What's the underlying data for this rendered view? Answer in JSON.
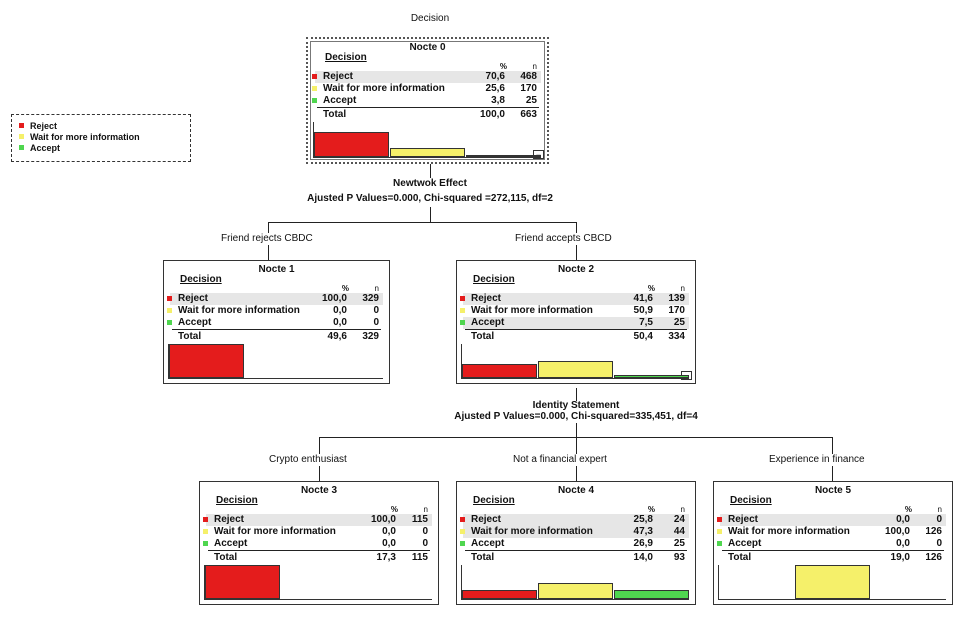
{
  "title": "Decision",
  "colors": {
    "reject": "#e41c1c",
    "wait": "#f5f06a",
    "accept": "#4fd64f"
  },
  "legend": {
    "items": [
      {
        "label": "Reject",
        "color": "#e41c1c"
      },
      {
        "label": "Wait for more information",
        "color": "#f5f06a"
      },
      {
        "label": "Accept",
        "color": "#4fd64f"
      }
    ]
  },
  "header": {
    "pct": "%",
    "n": "n"
  },
  "split1": {
    "title": "Newtwok Effect",
    "stats": "Ajusted P Values=0.000,  Chi-squared =272,115, df=2"
  },
  "split2": {
    "title": "Identity Statement",
    "stats": "Ajusted P Values=0.000,  Chi-squared=335,451,  df=4"
  },
  "branches": {
    "friend_rejects": "Friend rejects CBDC",
    "friend_accepts": "Friend accepts CBCD",
    "crypto": "Crypto enthusiast",
    "not_expert": "Not a financial expert",
    "experience": "Experience in finance"
  },
  "nodes": [
    {
      "id": "Nocte 0",
      "var": "Decision",
      "rows": [
        [
          "Reject",
          "70,6",
          "468"
        ],
        [
          "Wait for more information",
          "25,6",
          "170"
        ],
        [
          "Accept",
          "3,8",
          "25"
        ]
      ],
      "total": [
        "Total",
        "100,0",
        "663"
      ],
      "fractions": [
        0.706,
        0.256,
        0.038
      ]
    },
    {
      "id": "Nocte 1",
      "var": "Decision",
      "rows": [
        [
          "Reject",
          "100,0",
          "329"
        ],
        [
          "Wait for more information",
          "0,0",
          "0"
        ],
        [
          "Accept",
          "0,0",
          "0"
        ]
      ],
      "total": [
        "Total",
        "49,6",
        "329"
      ],
      "fractions": [
        1.0,
        0.0,
        0.0
      ]
    },
    {
      "id": "Nocte 2",
      "var": "Decision",
      "rows": [
        [
          "Reject",
          "41,6",
          "139"
        ],
        [
          "Wait for more information",
          "50,9",
          "170"
        ],
        [
          "Accept",
          "7,5",
          "25"
        ]
      ],
      "total": [
        "Total",
        "50,4",
        "334"
      ],
      "fractions": [
        0.416,
        0.509,
        0.075
      ]
    },
    {
      "id": "Nocte 3",
      "var": "Decision",
      "rows": [
        [
          "Reject",
          "100,0",
          "115"
        ],
        [
          "Wait for more information",
          "0,0",
          "0"
        ],
        [
          "Accept",
          "0,0",
          "0"
        ]
      ],
      "total": [
        "Total",
        "17,3",
        "115"
      ],
      "fractions": [
        1.0,
        0.0,
        0.0
      ]
    },
    {
      "id": "Nocte 4",
      "var": "Decision",
      "rows": [
        [
          "Reject",
          "25,8",
          "24"
        ],
        [
          "Wait for more information",
          "47,3",
          "44"
        ],
        [
          "Accept",
          "26,9",
          "25"
        ]
      ],
      "total": [
        "Total",
        "14,0",
        "93"
      ],
      "fractions": [
        0.258,
        0.473,
        0.269
      ]
    },
    {
      "id": "Nocte 5",
      "var": "Decision",
      "rows": [
        [
          "Reject",
          "0,0",
          "0"
        ],
        [
          "Wait for more information",
          "100,0",
          "126"
        ],
        [
          "Accept",
          "0,0",
          "0"
        ]
      ],
      "total": [
        "Total",
        "19,0",
        "126"
      ],
      "fractions": [
        0.0,
        1.0,
        0.0
      ]
    }
  ]
}
